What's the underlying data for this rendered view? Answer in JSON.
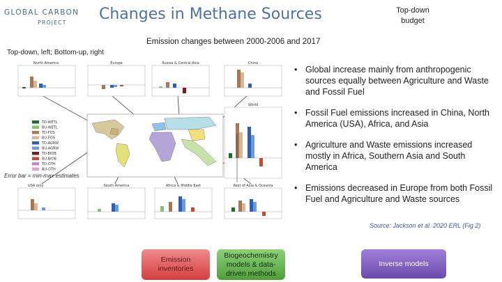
{
  "logo": {
    "top_line": "GLOBAL CARBON",
    "bottom_line": "PROJECT"
  },
  "header": {
    "title": "Changes in Methane Sources",
    "top_down_line1": "Top-down",
    "top_down_line2": "budget"
  },
  "subtitle": "Emission changes between 2000-2006 and 2017",
  "layout_note": "Top-down, left; Bottom-up, right",
  "error_note": "Error bar = min-max estimates",
  "panels": {
    "north_america": "North America",
    "europe": "Europe",
    "russia": "Russia & Central Asia",
    "china": "China",
    "world": "World",
    "usa": "USA only",
    "south_america": "South America",
    "africa": "Africa & Middle East",
    "rest_asia": "Rest of Asia & Oceania"
  },
  "legend_items": [
    {
      "label": "TD-WETL",
      "color": "#1e6b2a"
    },
    {
      "label": "BU-WETL",
      "color": "#86c46b"
    },
    {
      "label": "TD-FOS",
      "color": "#a4795a"
    },
    {
      "label": "BU-FOS",
      "color": "#d8b696"
    },
    {
      "label": "TD-AGRW",
      "color": "#2e5fb0"
    },
    {
      "label": "BU-AGRW",
      "color": "#6a9ae0"
    },
    {
      "label": "TD-BIOB",
      "color": "#7a1a1a"
    },
    {
      "label": "BU-BIOB",
      "color": "#c04a3a"
    },
    {
      "label": "TD-OTH",
      "color": "#c08ad0"
    },
    {
      "label": "BU-OTH",
      "color": "#e7a1c9"
    }
  ],
  "bullets": [
    "Global increase mainly from anthropogenic sources equally between Agriculture and Waste and Fossil Fuel",
    "Fossil Fuel emissions increased in China, North America (USA), Africa, and Asia",
    "Agriculture and Waste emissions increased mostly in Africa, Southern Asia and South America",
    "Emissions decreased in Europe from both Fossil Fuel and Agriculture and Waste sources"
  ],
  "source": "Source: Jackson et al. 2020 ERL (Fig 2)",
  "buttons": {
    "emission_line1": "Emission",
    "emission_line2": "inventories",
    "biogeo_line1": "Biogeochemistry",
    "biogeo_line2": "models & data-",
    "biogeo_line3": "driven methods",
    "inverse": "Inverse models"
  }
}
